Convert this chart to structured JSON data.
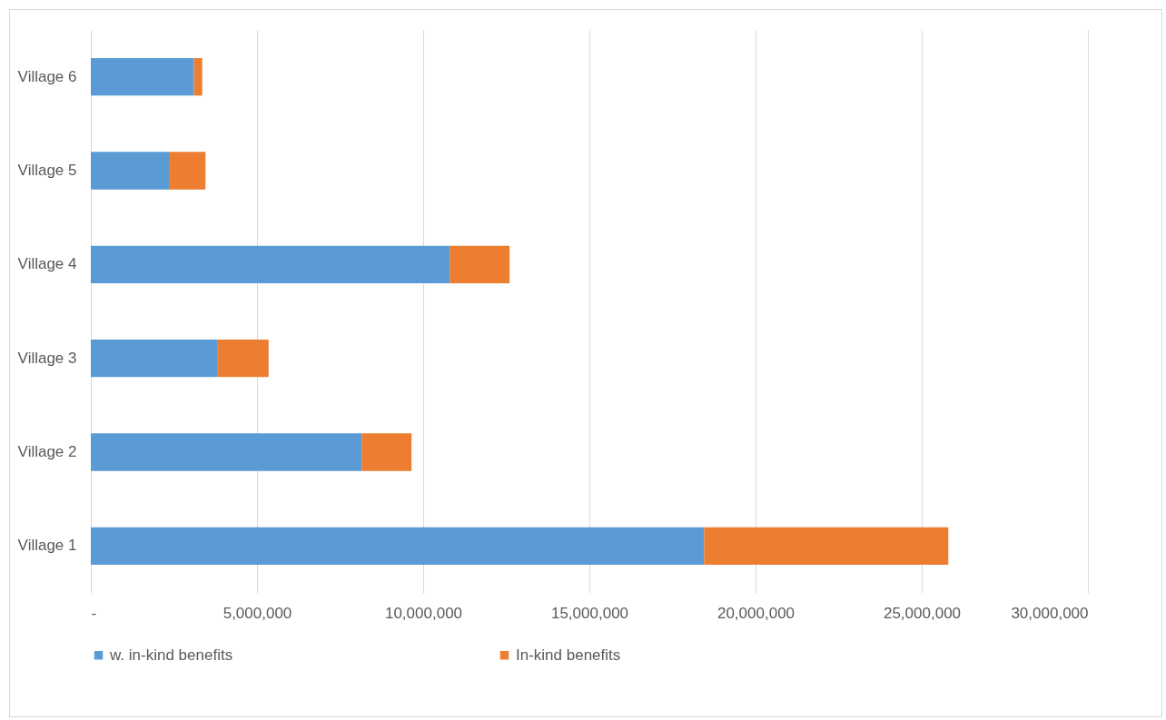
{
  "chart_data": {
    "type": "bar",
    "orientation": "horizontal",
    "stacked": true,
    "categories": [
      "Village 6",
      "Village 5",
      "Village 4",
      "Village 3",
      "Village 2",
      "Village 1"
    ],
    "series": [
      {
        "name": "w. in-kind benefits",
        "color": "#5b9bd5",
        "values": [
          3100000,
          2350000,
          10800000,
          3800000,
          8150000,
          18450000
        ]
      },
      {
        "name": "In-kind benefits",
        "color": "#ed7d31",
        "values": [
          250000,
          1100000,
          1800000,
          1550000,
          1500000,
          7350000
        ]
      }
    ],
    "xlim": [
      0,
      30000000
    ],
    "xticks": [
      {
        "value": 0,
        "label": "-"
      },
      {
        "value": 5000000,
        "label": "5,000,000"
      },
      {
        "value": 10000000,
        "label": "10,000,000"
      },
      {
        "value": 15000000,
        "label": "15,000,000"
      },
      {
        "value": 20000000,
        "label": "20,000,000"
      },
      {
        "value": 25000000,
        "label": "25,000,000"
      },
      {
        "value": 30000000,
        "label": "30,000,000"
      }
    ],
    "grid": "x",
    "legend": "bottom"
  }
}
